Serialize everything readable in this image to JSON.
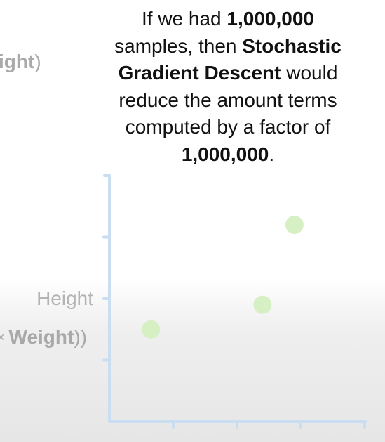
{
  "caption": {
    "l1_a": "If we had ",
    "l1_b": "1,000,000",
    "l2_a": "samples, then ",
    "l2_b": "Stochastic",
    "l3_b": "Gradient Descent",
    "l3_c": " would",
    "l4": "reduce the amount terms",
    "l5": "computed by a factor of",
    "l6_b": "1,000,000",
    "l6_c": "."
  },
  "fragments": {
    "top_bold": "ight",
    "top_paren": ")",
    "mid_times": "×",
    "mid_bold": "Weight",
    "mid_paren": "))"
  },
  "colors": {
    "axis": "#c9def0",
    "point": "#d6f0c4",
    "caption_text": "#111111",
    "faded_text": "#a9a9a9"
  },
  "chart_data": {
    "type": "scatter",
    "ylabel": "Height",
    "x_ticks": 4,
    "y_ticks": 3,
    "xlim": [
      0,
      4
    ],
    "ylim": [
      0,
      4
    ],
    "points": [
      {
        "x": 0.65,
        "y": 1.5
      },
      {
        "x": 2.4,
        "y": 1.9
      },
      {
        "x": 2.9,
        "y": 3.2
      }
    ]
  }
}
